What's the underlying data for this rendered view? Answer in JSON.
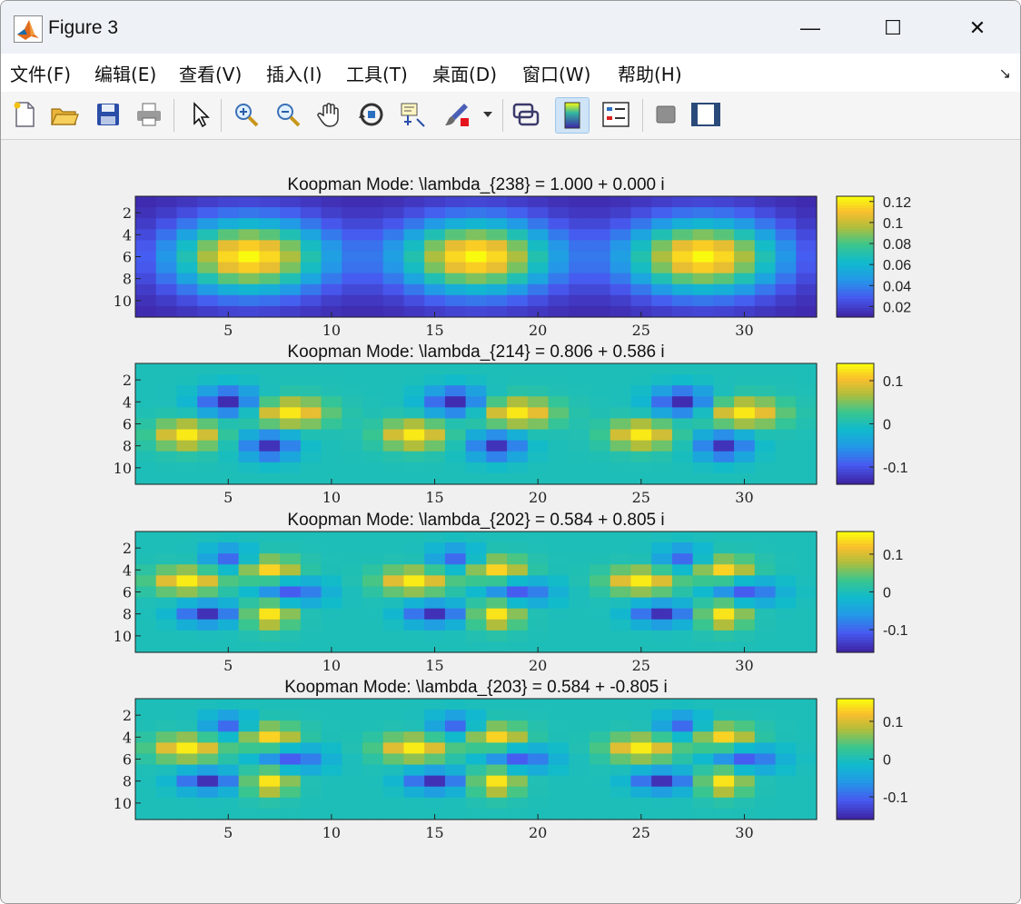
{
  "window": {
    "title": "Figure 3",
    "controls": {
      "minimize": "—",
      "maximize": "☐",
      "close": "✕"
    }
  },
  "menu": {
    "items": [
      "文件(F)",
      "编辑(E)",
      "查看(V)",
      "插入(I)",
      "工具(T)",
      "桌面(D)",
      "窗口(W)",
      "帮助(H)"
    ],
    "dock_icon": "dock-arrow-icon"
  },
  "toolbar": {
    "tools": [
      "new-figure-icon",
      "open-file-icon",
      "save-icon",
      "print-icon",
      "pointer-icon",
      "zoom-in-icon",
      "zoom-out-icon",
      "pan-hand-icon",
      "rotate-3d-icon",
      "data-cursor-icon",
      "brush-icon",
      "link-plot-icon",
      "colorbar-icon",
      "legend-icon",
      "hide-plot-tools-icon",
      "show-plot-tools-icon"
    ],
    "active": "colorbar-icon"
  },
  "chart_data": [
    {
      "type": "heatmap",
      "title": "Koopman Mode: \\lambda_{238} = 1.000 + 0.000 i",
      "grid": [
        33,
        11
      ],
      "xticks": [
        5,
        10,
        15,
        20,
        25,
        30
      ],
      "yticks": [
        2,
        4,
        6,
        8,
        10
      ],
      "xlim": [
        0.5,
        33.5
      ],
      "ylim": [
        0.5,
        11.5
      ],
      "colorbar_ticks": [
        "0.12",
        "0.1",
        "0.08",
        "0.06",
        "0.04",
        "0.02"
      ],
      "colorbar_range": [
        0.01,
        0.125
      ],
      "colormap": "parula",
      "pattern": "three smooth blobs centered near x=6, 17, 28 and y=6, max ≈0.125, min ≈0.01"
    },
    {
      "type": "heatmap",
      "title": "Koopman Mode: \\lambda_{214} = 0.806 + 0.586 i",
      "grid": [
        33,
        11
      ],
      "xticks": [
        5,
        10,
        15,
        20,
        25,
        30
      ],
      "yticks": [
        2,
        4,
        6,
        8,
        10
      ],
      "xlim": [
        0.5,
        33.5
      ],
      "ylim": [
        0.5,
        11.5
      ],
      "colorbar_ticks": [
        "0.1",
        "0",
        "-0.1"
      ],
      "colorbar_range": [
        -0.14,
        0.14
      ],
      "colormap": "parula",
      "pattern": "alternating positive/negative lobes repeating with period 11 in x"
    },
    {
      "type": "heatmap",
      "title": "Koopman Mode: \\lambda_{202} = 0.584 + 0.805 i",
      "grid": [
        33,
        11
      ],
      "xticks": [
        5,
        10,
        15,
        20,
        25,
        30
      ],
      "yticks": [
        2,
        4,
        6,
        8,
        10
      ],
      "xlim": [
        0.5,
        33.5
      ],
      "ylim": [
        0.5,
        11.5
      ],
      "colorbar_ticks": [
        "0.1",
        "0",
        "-0.1"
      ],
      "colorbar_range": [
        -0.16,
        0.16
      ],
      "colormap": "parula",
      "pattern": "checkered positive/negative patches repeating with period 11 in x"
    },
    {
      "type": "heatmap",
      "title": "Koopman Mode: \\lambda_{203} = 0.584 + -0.805 i",
      "grid": [
        33,
        11
      ],
      "xticks": [
        5,
        10,
        15,
        20,
        25,
        30
      ],
      "yticks": [
        2,
        4,
        6,
        8,
        10
      ],
      "xlim": [
        0.5,
        33.5
      ],
      "ylim": [
        0.5,
        11.5
      ],
      "colorbar_ticks": [
        "0.1",
        "0",
        "-0.1"
      ],
      "colorbar_range": [
        -0.16,
        0.16
      ],
      "colormap": "parula",
      "pattern": "conjugate mode, same patches as mode 202"
    }
  ]
}
